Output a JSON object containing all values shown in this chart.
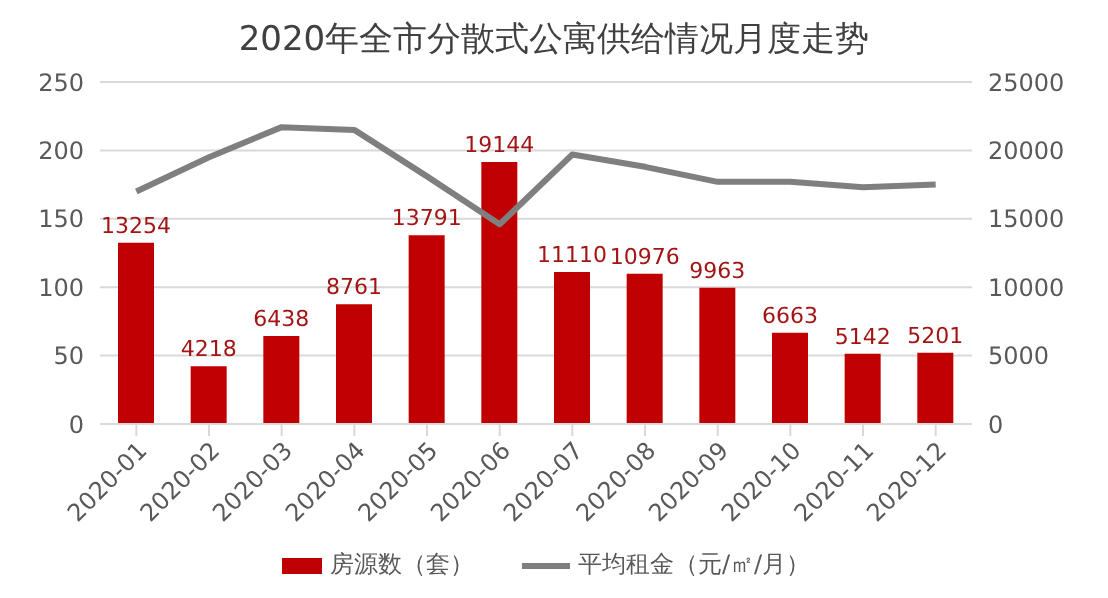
{
  "chart_data": {
    "type": "bar",
    "title": "2020年全市分散式公寓供给情况月度走势",
    "categories": [
      "2020-01",
      "2020-02",
      "2020-03",
      "2020-04",
      "2020-05",
      "2020-06",
      "2020-07",
      "2020-08",
      "2020-09",
      "2020-10",
      "2020-11",
      "2020-12"
    ],
    "series": [
      {
        "name": "房源数（套）",
        "axis": "y2",
        "color": "#c00000",
        "values": [
          13254,
          4218,
          6438,
          8761,
          13791,
          19144,
          11110,
          10976,
          9963,
          6663,
          5142,
          5201
        ],
        "value_labels": [
          "13254",
          "4218",
          "6438",
          "8761",
          "13791",
          "19144",
          "11110",
          "10976",
          "9963",
          "6663",
          "5142",
          "5201"
        ]
      },
      {
        "name": "平均租金（元/㎡/月）",
        "type": "line",
        "color": "#7f7f7f",
        "values": [
          170,
          195,
          217,
          215,
          181,
          146,
          197,
          188,
          177,
          177,
          173,
          175
        ]
      }
    ],
    "ylim": [
      0,
      250
    ],
    "yticks": [
      0,
      50,
      100,
      150,
      200,
      250
    ],
    "y2lim": [
      0,
      25000
    ],
    "y2ticks": [
      0,
      5000,
      10000,
      15000,
      20000,
      25000
    ],
    "grid": "y",
    "legend": "bottom",
    "marker": "none"
  }
}
